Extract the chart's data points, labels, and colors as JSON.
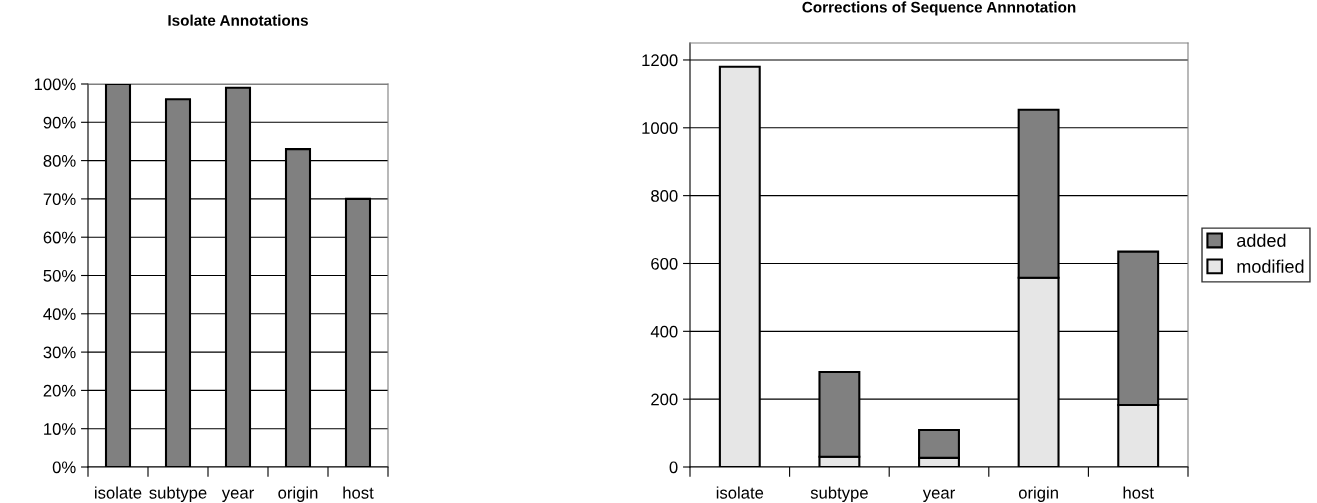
{
  "chart_data": [
    {
      "type": "bar",
      "title": "Isolate Annotations",
      "categories": [
        "isolate",
        "subtype",
        "year",
        "origin",
        "host"
      ],
      "values": [
        100,
        96,
        99,
        83,
        70
      ],
      "color": "#808080",
      "ylim": [
        0,
        100
      ],
      "yticks": [
        {
          "value": 0,
          "label": "0%"
        },
        {
          "value": 10,
          "label": "10%"
        },
        {
          "value": 20,
          "label": "20%"
        },
        {
          "value": 30,
          "label": "30%"
        },
        {
          "value": 40,
          "label": "40%"
        },
        {
          "value": 50,
          "label": "50%"
        },
        {
          "value": 60,
          "label": "60%"
        },
        {
          "value": 70,
          "label": "70%"
        },
        {
          "value": 80,
          "label": "80%"
        },
        {
          "value": 90,
          "label": "90%"
        },
        {
          "value": 100,
          "label": "100%"
        }
      ],
      "grid": "y"
    },
    {
      "type": "bar",
      "title": "Corrections of Sequence Annnotation",
      "categories": [
        "isolate",
        "subtype",
        "year",
        "origin",
        "host"
      ],
      "stacked": true,
      "series": [
        {
          "name": "modified",
          "color": "#e6e6e6",
          "values": [
            1180,
            30,
            27,
            558,
            183
          ]
        },
        {
          "name": "added",
          "color": "#808080",
          "values": [
            null,
            250,
            82,
            495,
            452
          ]
        }
      ],
      "ylim": [
        0,
        1250
      ],
      "yticks": [
        0,
        200,
        400,
        600,
        800,
        1000,
        1200
      ],
      "grid": "y",
      "legend": "right"
    }
  ]
}
